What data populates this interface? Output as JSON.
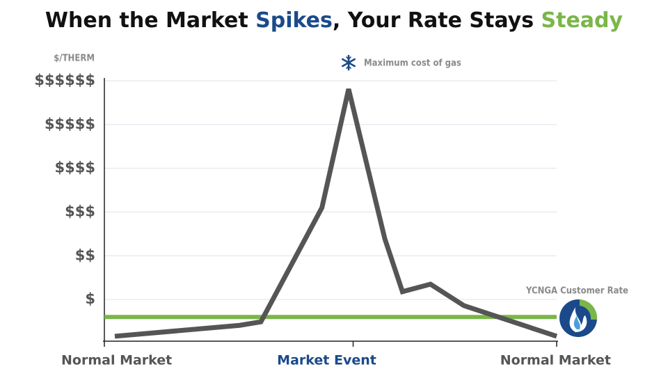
{
  "chart_data": {
    "type": "line",
    "title": [
      {
        "text": "When the Market ",
        "color": "#111111"
      },
      {
        "text": "Spikes",
        "color": "#1a4a8a"
      },
      {
        "text": ", Your Rate Stays ",
        "color": "#111111"
      },
      {
        "text": "Steady",
        "color": "#7ab648"
      }
    ],
    "y_label": "$/THERM",
    "xlim": [
      0,
      100
    ],
    "xticks": [
      {
        "value": 0,
        "label": "Normal Market"
      },
      {
        "value": 55,
        "label": "Market Event"
      },
      {
        "value": 100,
        "label": "Normal Market"
      }
    ],
    "xtick_colors": [
      "#555555",
      "#1a4a8a",
      "#555555"
    ],
    "ylim": [
      0,
      6
    ],
    "yticks": [
      {
        "value": 1,
        "label": "$"
      },
      {
        "value": 2,
        "label": "$$"
      },
      {
        "value": 3,
        "label": "$$$"
      },
      {
        "value": 4,
        "label": "$$$$"
      },
      {
        "value": 5,
        "label": "$$$$$"
      },
      {
        "value": 6,
        "label": "$$$$$$"
      }
    ],
    "grid": true,
    "series": [
      {
        "color": "#555555",
        "x": [
          2.3,
          29.9,
          34.6,
          48.1,
          54,
          62,
          65.9,
          72.1,
          79.5,
          100
        ],
        "values": [
          0.16,
          0.41,
          0.49,
          3.1,
          5.81,
          2.39,
          1.18,
          1.35,
          0.86,
          0.16
        ]
      },
      {
        "name": "YCNGA Customer Rate",
        "color": "#7ab648",
        "x": [
          0,
          100
        ],
        "values": [
          0.6,
          0.6
        ]
      }
    ],
    "annotations": [
      {
        "text": "Maximum cost of gas"
      }
    ]
  }
}
